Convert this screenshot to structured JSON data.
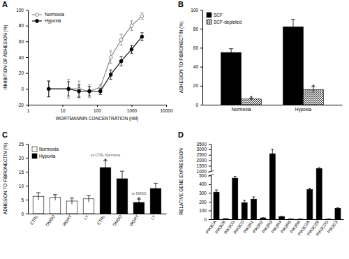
{
  "chart_data": [
    {
      "type": "line",
      "title": "A",
      "x_label": "WORTMANNIN CONCENTRATION (nM)",
      "y_label": "INHIBITION OF ADHESION (%)",
      "log": "x",
      "legend": "upper left",
      "x": [
        4,
        15,
        30,
        60,
        125,
        250,
        500,
        1000,
        2000
      ],
      "xlim": [
        1,
        10000
      ],
      "xticks": [
        1,
        10,
        100,
        1000,
        10000
      ],
      "ylim": [
        -20,
        100
      ],
      "yticks": [
        -20,
        0,
        20,
        40,
        60,
        80,
        100
      ],
      "series": [
        {
          "name": "Normoxia",
          "color": "#7f7f7f",
          "marker": "open-circle",
          "values": [
            0,
            0,
            0,
            -3,
            2,
            40,
            62,
            80,
            92
          ],
          "errors": [
            10,
            12,
            10,
            8,
            4,
            8,
            7,
            6,
            4
          ]
        },
        {
          "name": "Hypoxia",
          "color": "#000000",
          "marker": "filled-circle",
          "values": [
            0,
            0,
            -3,
            -3,
            -3,
            18,
            35,
            50,
            66
          ],
          "errors": [
            10,
            9,
            8,
            6,
            4,
            6,
            6,
            5,
            5
          ]
        }
      ]
    },
    {
      "type": "bar",
      "title": "B",
      "y_label": "ADHESION TO FIBRONECTIN (%)",
      "legend": "upper left",
      "categories": [
        "Normoxia",
        "Hypoxia"
      ],
      "ylim": [
        0,
        100
      ],
      "yticks": [
        0,
        20,
        40,
        60,
        80,
        100
      ],
      "series": [
        {
          "name": "SCF",
          "color": "#000000",
          "values": [
            55,
            82
          ],
          "errors": [
            4,
            8
          ]
        },
        {
          "name": "SCF-depleted",
          "color": "#000000",
          "line_style": "hatched",
          "values": [
            6,
            16
          ],
          "errors": [
            1,
            3
          ]
        }
      ],
      "annotations": [
        {
          "text": "*",
          "series": 1,
          "category": 0
        },
        {
          "text": "*",
          "series": 1,
          "category": 1
        }
      ]
    },
    {
      "type": "bar",
      "title": "C",
      "y_label": "ADHESION TO FIBRONECTIN (%)",
      "legend": "upper left",
      "categories": [
        "CTRL",
        "DMSO",
        "WORT",
        "LY",
        "CTRL",
        "DMSO",
        "WORT",
        "LY"
      ],
      "ylim": [
        0,
        25
      ],
      "yticks": [
        0,
        5,
        10,
        15,
        20,
        25
      ],
      "series": [
        {
          "name": "Normoxia",
          "color": "#ffffff",
          "values": [
            6.2,
            5.8,
            4.5,
            5.3,
            null,
            null,
            null,
            null
          ],
          "errors": [
            1.3,
            1.0,
            1.1,
            1.2,
            null,
            null,
            null,
            null
          ]
        },
        {
          "name": "Hypoxia",
          "color": "#000000",
          "values": [
            null,
            null,
            null,
            null,
            16.5,
            12.5,
            4,
            9
          ],
          "errors": [
            null,
            null,
            null,
            null,
            2.5,
            2.7,
            1.2,
            1.9
          ]
        }
      ],
      "annotations": [
        {
          "text": "*",
          "note": "vs CTRL Normoxia",
          "series": 1,
          "category": 4
        },
        {
          "text": "*",
          "note": "vs DMSO",
          "series": 1,
          "category": 6
        }
      ]
    },
    {
      "type": "bar",
      "title": "D",
      "y_label": "RELATIVE GENE EXPRESSION",
      "categories": [
        "PIK3CA",
        "PIK3CB",
        "PIK3CG",
        "PIK3CD",
        "PIK3R1",
        "PIK3R2",
        "PIK3R3",
        "PIK3R4",
        "PIK3R5",
        "PIK3R6",
        "PIK3C2A",
        "PIK3C2B",
        "PIK3C2G",
        "PIK3C3"
      ],
      "values": [
        310,
        5,
        470,
        190,
        230,
        15,
        2600,
        30,
        2,
        1,
        340,
        1250,
        1,
        125
      ],
      "errors": [
        25,
        1,
        20,
        25,
        25,
        2,
        400,
        3,
        0.5,
        0.5,
        15,
        80,
        0.5,
        5
      ],
      "color": "#000000",
      "ylim": [
        0,
        3500
      ],
      "yticks": [
        0,
        100,
        200,
        300,
        400,
        500,
        1000,
        1500,
        2000,
        2500,
        3000,
        3500
      ]
    }
  ]
}
